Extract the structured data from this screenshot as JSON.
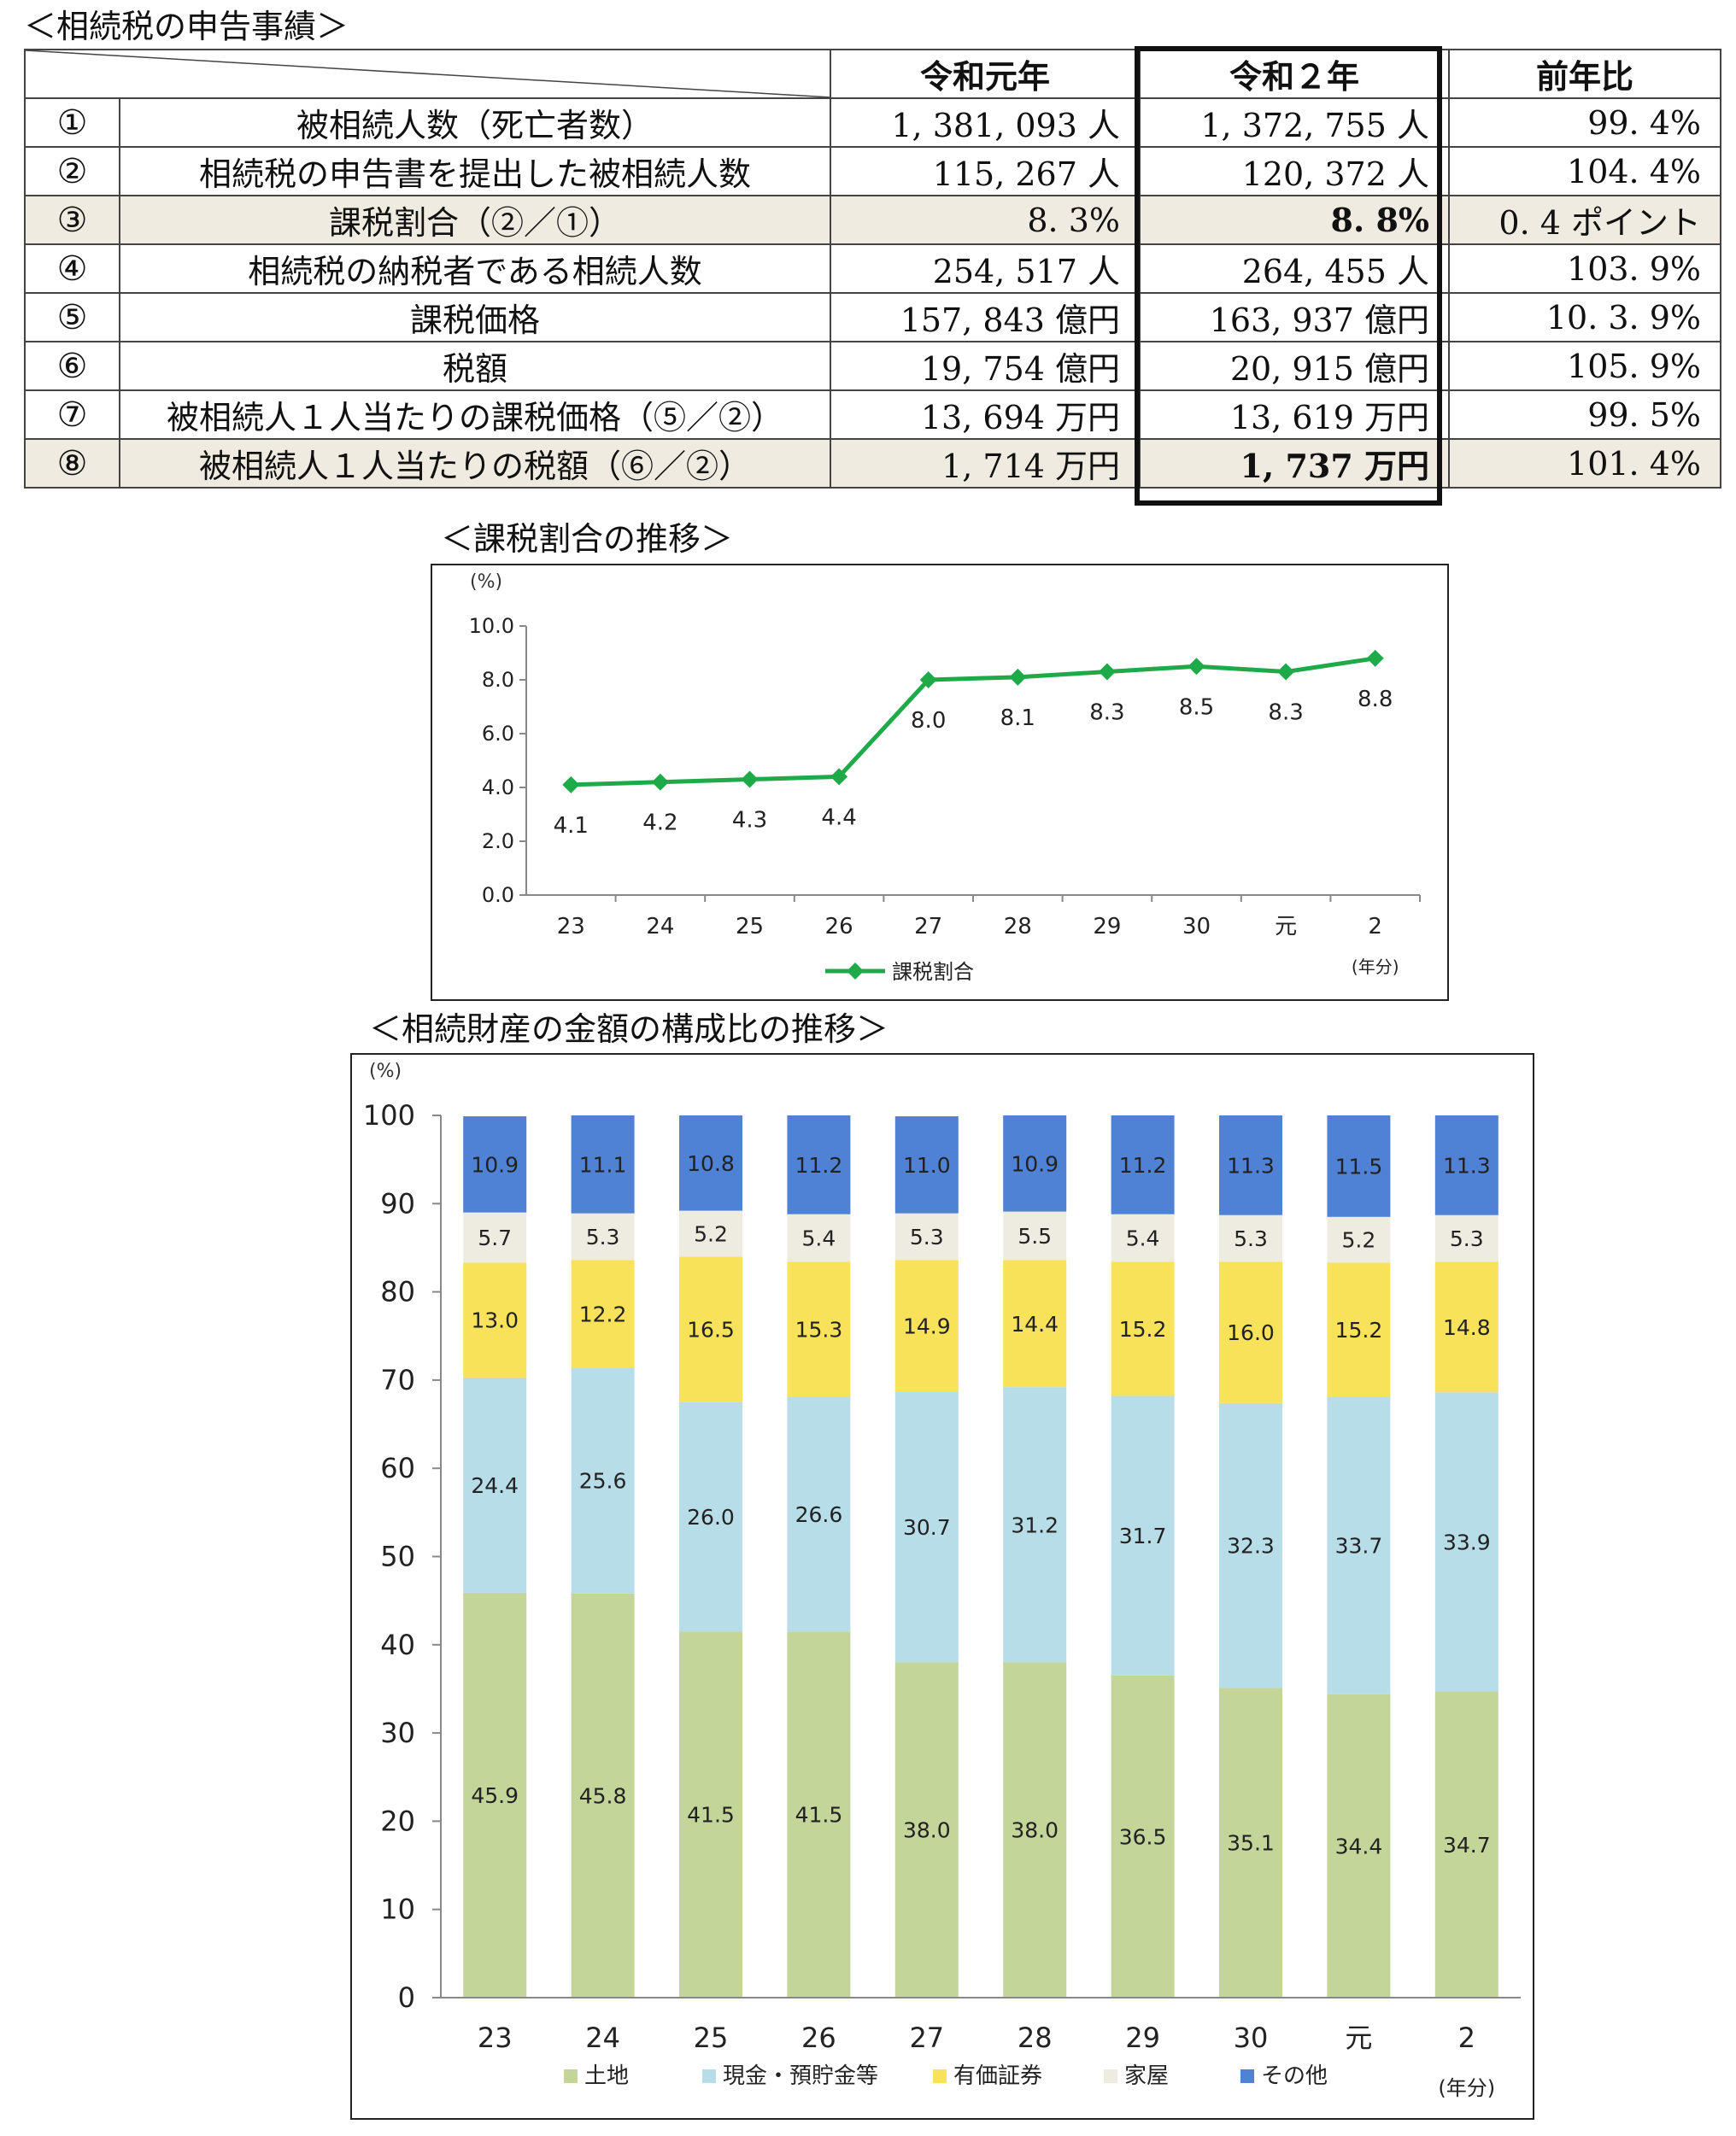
{
  "table_heading": "＜相続税の申告事績＞",
  "table": {
    "columns": [
      "令和元年",
      "令和２年",
      "前年比"
    ],
    "rows": [
      {
        "no": "①",
        "item": "被相続人数（死亡者数）",
        "v1": "1, 381, 093 人",
        "v2": "1, 372, 755 人",
        "ratio": "99. 4%"
      },
      {
        "no": "②",
        "item": "相続税の申告書を提出した被相続人数",
        "v1": "115, 267 人",
        "v2": "120, 372 人",
        "ratio": "104. 4%"
      },
      {
        "no": "③",
        "item": "課税割合（②／①）",
        "v1": "8. 3%",
        "v2": "8. 8%",
        "ratio": "0. 4 ポイント"
      },
      {
        "no": "④",
        "item": "相続税の納税者である相続人数",
        "v1": "254, 517 人",
        "v2": "264, 455 人",
        "ratio": "103. 9%"
      },
      {
        "no": "⑤",
        "item": "課税価格",
        "v1": "157, 843 億円",
        "v2": "163, 937 億円",
        "ratio": "10. 3. 9%"
      },
      {
        "no": "⑥",
        "item": "税額",
        "v1": "19, 754 億円",
        "v2": "20, 915 億円",
        "ratio": "105. 9%"
      },
      {
        "no": "⑦",
        "item": "被相続人１人当たりの課税価格（⑤／②）",
        "v1": "13, 694 万円",
        "v2": "13, 619 万円",
        "ratio": "99. 5%"
      },
      {
        "no": "⑧",
        "item": "被相続人１人当たりの税額（⑥／②）",
        "v1": "1, 714 万円",
        "v2": "1, 737 万円",
        "ratio": "101. 4%"
      }
    ]
  },
  "line_heading": "＜課税割合の推移＞",
  "bar_heading": "＜相続財産の金額の構成比の推移＞",
  "chart_data": [
    {
      "type": "line",
      "categories": [
        "23",
        "24",
        "25",
        "26",
        "27",
        "28",
        "29",
        "30",
        "元",
        "2"
      ],
      "series": [
        {
          "name": "課税割合",
          "values": [
            4.1,
            4.2,
            4.3,
            4.4,
            8.0,
            8.1,
            8.3,
            8.5,
            8.3,
            8.8
          ],
          "color": "#1faa4a"
        }
      ],
      "data_labels": [
        "4.1",
        "4.2",
        "4.3",
        "4.4",
        "8.0",
        "8.1",
        "8.3",
        "8.5",
        "8.3",
        "8.8"
      ],
      "yticks": [
        "0.0",
        "2.0",
        "4.0",
        "6.0",
        "8.0",
        "10.0"
      ],
      "ylim": [
        0,
        10
      ],
      "y_unit": "(%)",
      "x_unit": "(年分)",
      "grid": false,
      "legend": "bottom"
    },
    {
      "type": "bar",
      "stacked": true,
      "categories": [
        "23",
        "24",
        "25",
        "26",
        "27",
        "28",
        "29",
        "30",
        "元",
        "2"
      ],
      "series": [
        {
          "name": "土地",
          "color": "#c4d59a",
          "values": [
            45.9,
            45.8,
            41.5,
            41.5,
            38.0,
            38.0,
            36.5,
            35.1,
            34.4,
            34.7
          ],
          "labels": [
            "45.9",
            "45.8",
            "41.5",
            "41.5",
            "38.0",
            "38.0",
            "36.5",
            "35.1",
            "34.4",
            "34.7"
          ]
        },
        {
          "name": "現金・預貯金等",
          "color": "#b7dde8",
          "values": [
            24.4,
            25.6,
            26.0,
            26.6,
            30.7,
            31.2,
            31.7,
            32.3,
            33.7,
            33.9
          ],
          "labels": [
            "24.4",
            "25.6",
            "26.0",
            "26.6",
            "30.7",
            "31.2",
            "31.7",
            "32.3",
            "33.7",
            "33.9"
          ]
        },
        {
          "name": "有価証券",
          "color": "#f7e25a",
          "values": [
            13.0,
            12.2,
            16.5,
            15.3,
            14.9,
            14.4,
            15.2,
            16.0,
            15.2,
            14.8
          ],
          "labels": [
            "13.0",
            "12.2",
            "16.5",
            "15.3",
            "14.9",
            "14.4",
            "15.2",
            "16.0",
            "15.2",
            "14.8"
          ]
        },
        {
          "name": "家屋",
          "color": "#eeece1",
          "values": [
            5.7,
            5.3,
            5.2,
            5.4,
            5.3,
            5.5,
            5.4,
            5.3,
            5.2,
            5.3
          ],
          "labels": [
            "5.7",
            "5.3",
            "5.2",
            "5.4",
            "5.3",
            "5.5",
            "5.4",
            "5.3",
            "5.2",
            "5.3"
          ]
        },
        {
          "name": "その他",
          "color": "#4f81d4",
          "values": [
            10.9,
            11.1,
            10.8,
            11.2,
            11.0,
            10.9,
            11.2,
            11.3,
            11.5,
            11.3
          ],
          "labels": [
            "10.9",
            "11.1",
            "10.8",
            "11.2",
            "11.0",
            "10.9",
            "11.2",
            "11.3",
            "11.5",
            "11.3"
          ]
        }
      ],
      "yticks": [
        "0",
        "10",
        "20",
        "30",
        "40",
        "50",
        "60",
        "70",
        "80",
        "90",
        "100"
      ],
      "ylim": [
        0,
        100
      ],
      "y_unit": "(%)",
      "x_unit": "(年分)",
      "grid": false,
      "legend": "bottom"
    }
  ]
}
